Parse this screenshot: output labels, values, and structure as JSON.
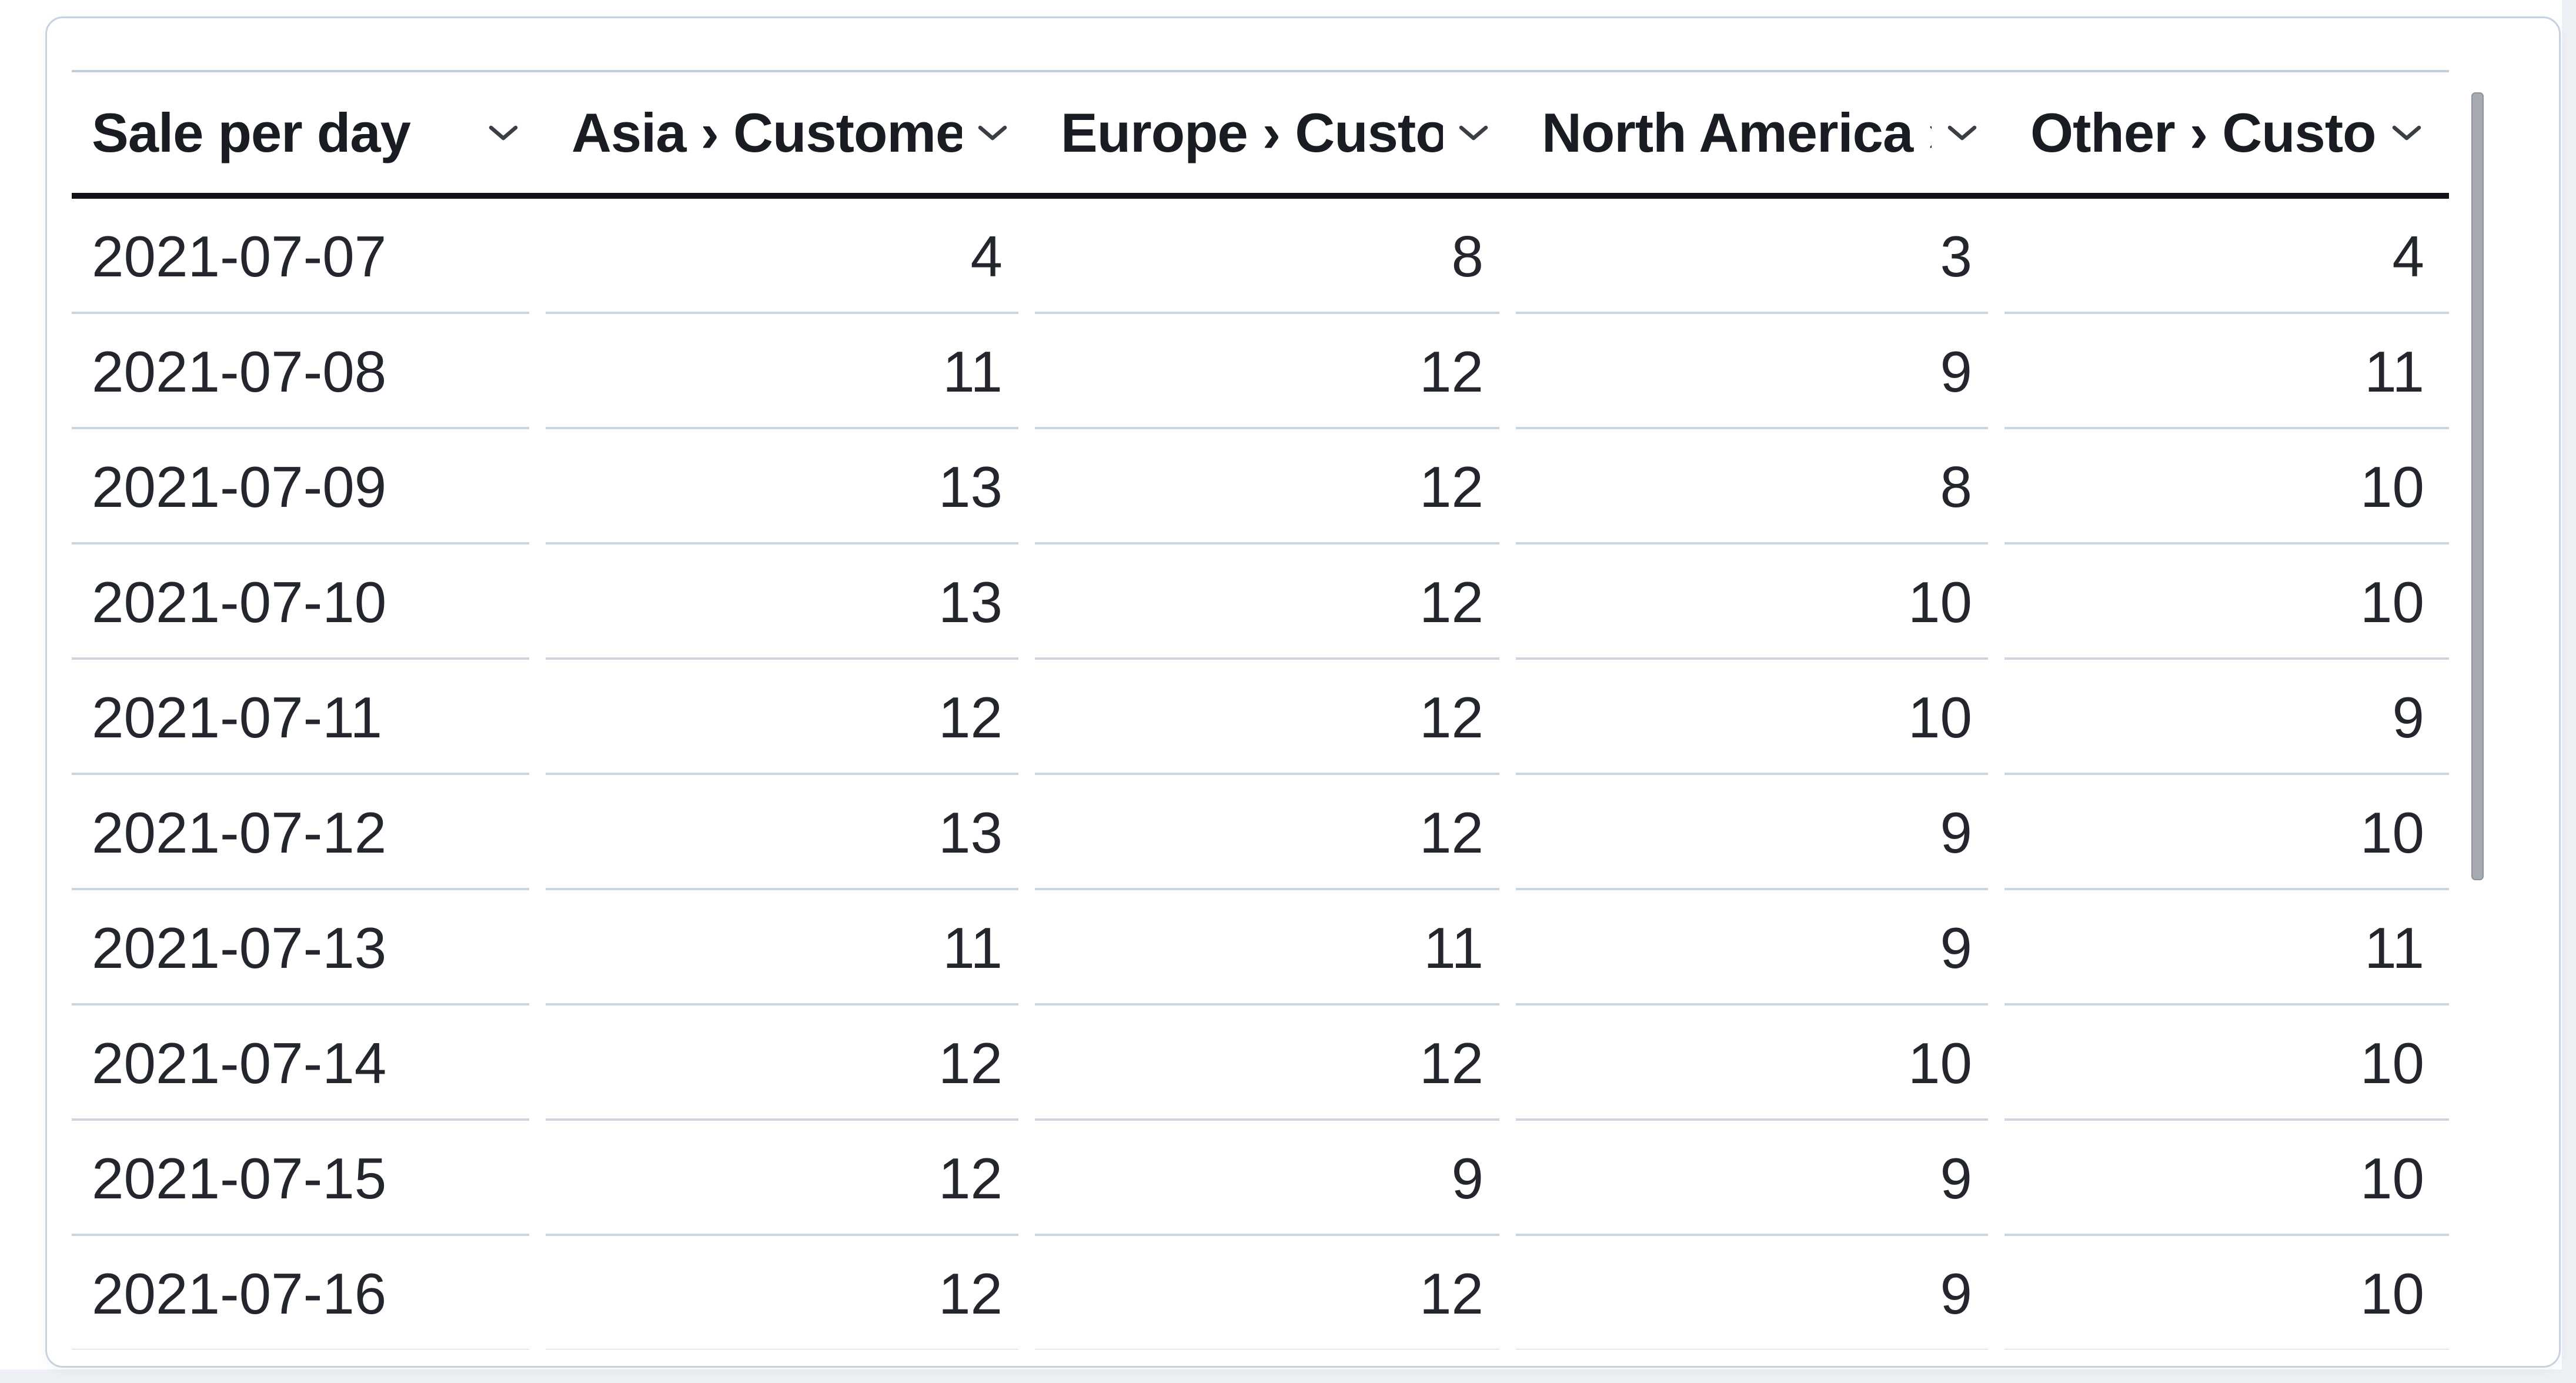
{
  "table": {
    "columns": [
      {
        "label": "Sale per day",
        "align": "left"
      },
      {
        "label": "Asia › Customers",
        "align": "right"
      },
      {
        "label": "Europe › Customers",
        "align": "right"
      },
      {
        "label": "North America › Customers",
        "align": "right"
      },
      {
        "label": "Other › Customers",
        "align": "right"
      }
    ],
    "rows": [
      [
        "2021-07-07",
        "4",
        "8",
        "3",
        "4"
      ],
      [
        "2021-07-08",
        "11",
        "12",
        "9",
        "11"
      ],
      [
        "2021-07-09",
        "13",
        "12",
        "8",
        "10"
      ],
      [
        "2021-07-10",
        "13",
        "12",
        "10",
        "10"
      ],
      [
        "2021-07-11",
        "12",
        "12",
        "10",
        "9"
      ],
      [
        "2021-07-12",
        "13",
        "12",
        "9",
        "10"
      ],
      [
        "2021-07-13",
        "11",
        "11",
        "9",
        "11"
      ],
      [
        "2021-07-14",
        "12",
        "12",
        "10",
        "10"
      ],
      [
        "2021-07-15",
        "12",
        "9",
        "9",
        "10"
      ],
      [
        "2021-07-16",
        "12",
        "12",
        "9",
        "10"
      ]
    ]
  },
  "icons": {
    "header_sort": "chevron-down"
  },
  "scrollbar": {
    "orientation": "vertical",
    "thumb_color": "#a6abb3"
  },
  "colors": {
    "card_background": "#ffffff",
    "card_border": "#c8d2de",
    "page_edge_background": "#edf0f4",
    "header_text": "#1a1c23",
    "cell_text": "#24262d",
    "header_rule_dark": "#111318",
    "table_top_rule": "#c2cede",
    "row_separator": "#ccd5e2",
    "chevron": "#3a3e45"
  }
}
